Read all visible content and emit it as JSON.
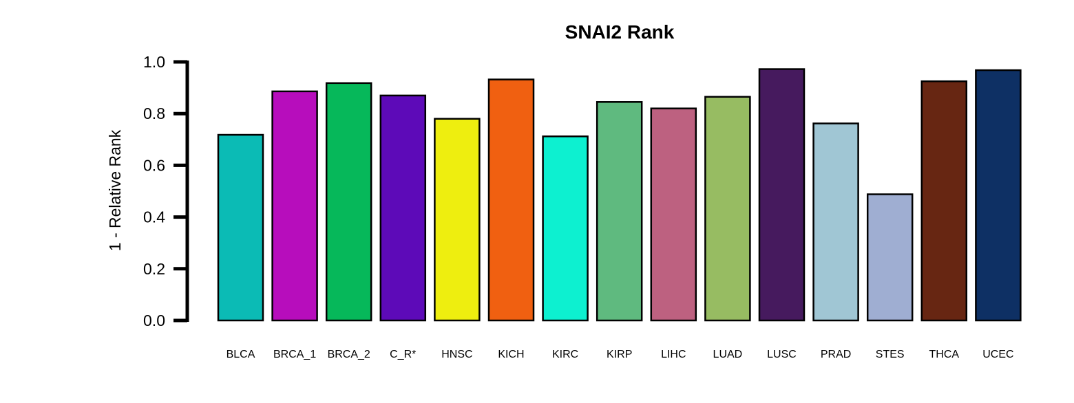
{
  "chart_data": {
    "type": "bar",
    "title": "SNAI2 Rank",
    "xlabel": "",
    "ylabel": "1 - Relative Rank",
    "ylim": [
      0,
      1.0
    ],
    "yticks": [
      "0.0",
      "0.2",
      "0.4",
      "0.6",
      "0.8",
      "1.0"
    ],
    "grid": false,
    "categories": [
      "BLCA",
      "BRCA_1",
      "BRCA_2",
      "C_R*",
      "HNSC",
      "KICH",
      "KIRC",
      "KIRP",
      "LIHC",
      "LUAD",
      "LUSC",
      "PRAD",
      "STES",
      "THCA",
      "UCEC"
    ],
    "values": [
      0.718,
      0.886,
      0.918,
      0.87,
      0.78,
      0.932,
      0.712,
      0.845,
      0.82,
      0.865,
      0.972,
      0.762,
      0.488,
      0.925,
      0.968
    ],
    "colors": [
      "#0BBBB5",
      "#B70DBC",
      "#06B85A",
      "#5D0AB8",
      "#EEEE0F",
      "#F06011",
      "#0DF0D0",
      "#5FBA7F",
      "#BD6180",
      "#97BC62",
      "#461A5E",
      "#A0C6D4",
      "#9FAED2",
      "#672612",
      "#0E3064"
    ]
  }
}
